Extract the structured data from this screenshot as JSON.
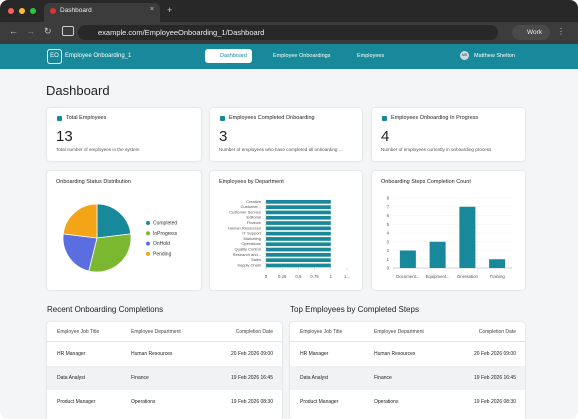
{
  "browser": {
    "tab_title": "Dashboard",
    "url": "example.com/EmployeeOnboarding_1/Dashboard",
    "profile": "Work"
  },
  "nav": {
    "logo": "EO",
    "app_name": "Employee Onboarding_1",
    "links": [
      "Dashboard",
      "Employee Onboardings",
      "Employees"
    ],
    "user_initials": "MS",
    "user_name": "Matthew Shelton"
  },
  "page_title": "Dashboard",
  "stats": [
    {
      "title": "Total Employees",
      "value": 13,
      "description": "Total number of employees in the system"
    },
    {
      "title": "Employees Completed Onboarding",
      "value": 3,
      "description": "Number of employees who have completed all onboarding ..."
    },
    {
      "title": "Employees Onboarding In Progress",
      "value": 4,
      "description": "Number of employees currently in onboarding process"
    }
  ],
  "charts": [
    {
      "type": "pie",
      "title": "Onboarding Status Distribution",
      "categories": [
        "Completed",
        "InProgress",
        "OnHold",
        "Pending"
      ],
      "values": [
        3,
        4,
        3,
        3
      ],
      "colors": [
        "#17899a",
        "#7cb82f",
        "#5a6ee0",
        "#f4a417"
      ]
    },
    {
      "type": "hbar",
      "title": "Employees by Department",
      "categories": [
        "Creative",
        "Customer...",
        "Customer Service",
        "Editorial",
        "Finance",
        "Human Resources",
        "IT Support",
        "Marketing",
        "Operations",
        "Quality Control",
        "Research and...",
        "Sales",
        "Supply Chain"
      ],
      "values": [
        1,
        1,
        1,
        1,
        1,
        1,
        1,
        1,
        1,
        1,
        1,
        1,
        1
      ],
      "color": "#17899a",
      "xlim": [
        0,
        1.25
      ],
      "xticks": [
        0,
        0.25,
        0.5,
        0.75,
        1,
        {
          "value": 1.25,
          "label": "1..."
        }
      ]
    },
    {
      "type": "bar",
      "title": "Onboarding Steps Completion Count",
      "categories": [
        "Document...",
        "Equipment...",
        "Orientation",
        "Training"
      ],
      "values": [
        2,
        3,
        7,
        1
      ],
      "color": "#17899a",
      "ylim": [
        0,
        8
      ],
      "yticks": [
        0,
        1,
        2,
        3,
        4,
        5,
        6,
        7,
        8
      ],
      "grid": true
    }
  ],
  "tables": [
    {
      "title": "Recent Onboarding Completions",
      "columns": [
        "Employee Job Title",
        "Employee Department",
        "Completion Date"
      ],
      "rows": [
        [
          "HR Manager",
          "Human Resources",
          "20 Feb 2026 09:00"
        ],
        [
          "Data Analyst",
          "Finance",
          "19 Feb 2026 16:45"
        ],
        [
          "Product Manager",
          "Operations",
          "19 Feb 2026 08:30"
        ]
      ]
    },
    {
      "title": "Top Employees by Completed Steps",
      "columns": [
        "Employee Job Title",
        "Employee Department",
        "Completion Date"
      ],
      "rows": [
        [
          "HR Manager",
          "Human Resources",
          "20 Feb 2026 09:00"
        ],
        [
          "Data Analyst",
          "Finance",
          "19 Feb 2026 16:45"
        ],
        [
          "Product Manager",
          "Operations",
          "19 Feb 2026 08:30"
        ]
      ]
    }
  ]
}
